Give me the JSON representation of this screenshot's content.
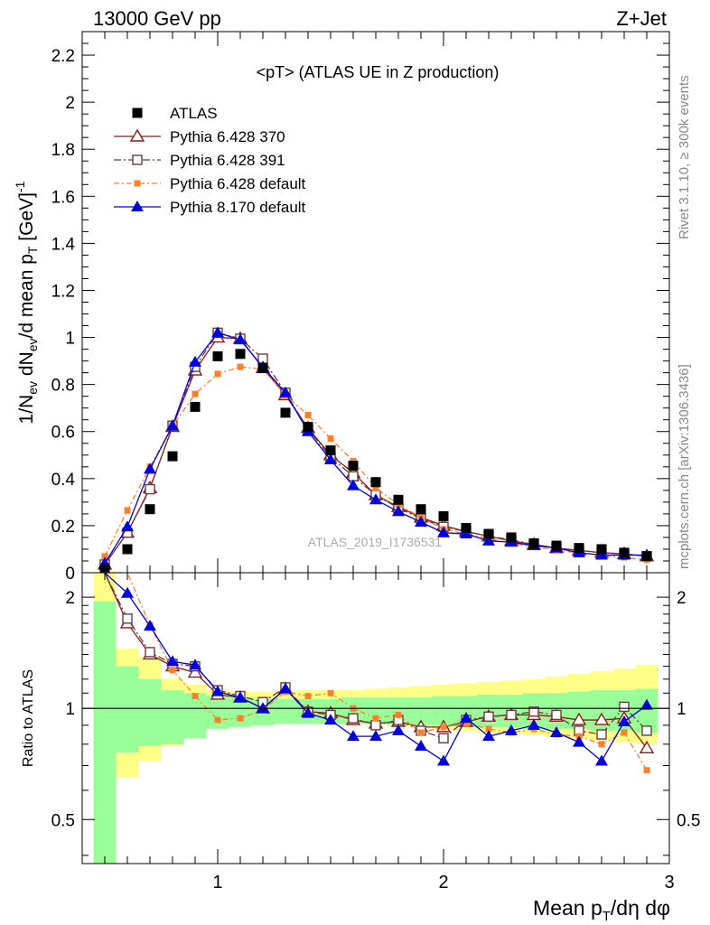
{
  "header": {
    "left_title": "13000 GeV pp",
    "right_title": "Z+Jet",
    "rivet_label": "Rivet 3.1.10, ≥ 300k events",
    "mcplots_label": "mcplots.cern.ch [arXiv:1306.3436]",
    "watermark": "ATLAS_2019_I1736531"
  },
  "chart_data": {
    "type": "scatter",
    "title": "<pT> (ATLAS UE in Z production)",
    "xlabel": "Mean p_T/dη dφ",
    "ylabel_main": "1/N_ev dN_ev/d mean p_T [GeV]^-1",
    "ylabel_ratio": "Ratio to ATLAS",
    "xlim": [
      0.4,
      3.0
    ],
    "ylim_main": [
      0,
      2.3
    ],
    "ylim_ratio": [
      0.38,
      2.33
    ],
    "ratio_scale": "log",
    "x_ticks": [
      "1",
      "2",
      "3"
    ],
    "y_ticks_main": [
      "0",
      "0.2",
      "0.4",
      "0.6",
      "0.8",
      "1",
      "1.2",
      "1.4",
      "1.6",
      "1.8",
      "2",
      "2.2"
    ],
    "y_ticks_ratio": [
      "0.5",
      "1",
      "2"
    ],
    "legend_position": "top-left",
    "x": [
      0.5,
      0.6,
      0.7,
      0.8,
      0.9,
      1.0,
      1.1,
      1.2,
      1.3,
      1.4,
      1.5,
      1.6,
      1.7,
      1.8,
      1.9,
      2.0,
      2.1,
      2.2,
      2.3,
      2.4,
      2.5,
      2.6,
      2.7,
      2.8,
      2.9
    ],
    "series": [
      {
        "name": "ATLAS",
        "color": "#000000",
        "marker": "square-filled",
        "values": [
          0.015,
          0.1,
          0.27,
          0.495,
          0.705,
          0.92,
          0.93,
          0.87,
          0.68,
          0.62,
          0.52,
          0.455,
          0.385,
          0.31,
          0.27,
          0.24,
          0.19,
          0.165,
          0.15,
          0.125,
          0.115,
          0.105,
          0.1,
          0.085,
          0.07
        ],
        "ratio": [
          1,
          1,
          1,
          1,
          1,
          1,
          1,
          1,
          1,
          1,
          1,
          1,
          1,
          1,
          1,
          1,
          1,
          1,
          1,
          1,
          1,
          1,
          1,
          1,
          1
        ]
      },
      {
        "name": "Pythia 6.428 370",
        "color": "#8b1a1a",
        "marker": "triangle-open",
        "values": [
          0.035,
          0.17,
          0.36,
          0.62,
          0.86,
          1.0,
          0.995,
          0.87,
          0.755,
          0.615,
          0.5,
          0.425,
          0.33,
          0.28,
          0.235,
          0.2,
          0.175,
          0.155,
          0.135,
          0.12,
          0.105,
          0.095,
          0.085,
          0.08,
          0.07
        ],
        "ratio": [
          2.33,
          1.7,
          1.4,
          1.3,
          1.25,
          1.09,
          1.07,
          1.0,
          1.13,
          0.98,
          0.97,
          0.93,
          0.91,
          0.92,
          0.89,
          0.89,
          0.92,
          0.95,
          0.96,
          0.96,
          0.95,
          0.93,
          0.93,
          0.94,
          0.78
        ]
      },
      {
        "name": "Pythia 6.428 391",
        "color": "#6b3b3b",
        "marker": "square-open",
        "values": [
          0.035,
          0.17,
          0.355,
          0.625,
          0.875,
          1.02,
          0.995,
          0.91,
          0.765,
          0.61,
          0.49,
          0.41,
          0.33,
          0.275,
          0.23,
          0.195,
          0.175,
          0.155,
          0.14,
          0.12,
          0.105,
          0.095,
          0.085,
          0.08,
          0.07
        ],
        "ratio": [
          2.33,
          1.75,
          1.42,
          1.32,
          1.3,
          1.12,
          1.08,
          1.04,
          1.14,
          0.98,
          0.96,
          0.94,
          0.9,
          0.93,
          0.87,
          0.83,
          0.93,
          0.95,
          0.96,
          0.98,
          0.96,
          0.87,
          0.85,
          1.01,
          0.87
        ]
      },
      {
        "name": "Pythia 6.428 default",
        "color": "#ff7f2a",
        "marker": "square-small",
        "values": [
          0.07,
          0.265,
          0.45,
          0.625,
          0.76,
          0.845,
          0.875,
          0.865,
          0.755,
          0.67,
          0.57,
          0.475,
          0.36,
          0.29,
          0.235,
          0.185,
          0.165,
          0.145,
          0.125,
          0.11,
          0.095,
          0.085,
          0.075,
          0.065,
          0.055
        ],
        "ratio": [
          2.33,
          2.33,
          1.68,
          1.27,
          1.08,
          0.93,
          0.94,
          0.99,
          1.11,
          1.08,
          1.1,
          1.0,
          0.94,
          0.96,
          0.86,
          0.89,
          0.91,
          0.88,
          0.86,
          0.88,
          0.85,
          0.84,
          0.8,
          0.86,
          0.68
        ]
      },
      {
        "name": "Pythia 8.170 default",
        "color": "#0000dd",
        "marker": "triangle-filled",
        "values": [
          0.04,
          0.195,
          0.44,
          0.625,
          0.895,
          1.02,
          0.99,
          0.875,
          0.765,
          0.6,
          0.48,
          0.37,
          0.31,
          0.26,
          0.215,
          0.17,
          0.165,
          0.135,
          0.13,
          0.115,
          0.105,
          0.085,
          0.075,
          0.075,
          0.075
        ],
        "ratio": [
          2.33,
          2.05,
          1.67,
          1.34,
          1.31,
          1.11,
          1.07,
          1.0,
          1.13,
          0.97,
          0.93,
          0.84,
          0.84,
          0.87,
          0.79,
          0.72,
          0.94,
          0.84,
          0.87,
          0.9,
          0.86,
          0.81,
          0.72,
          0.92,
          1.02
        ]
      }
    ],
    "ratio_error_band": {
      "green_lower": [
        0.38,
        0.76,
        0.79,
        0.8,
        0.83,
        0.88,
        0.89,
        0.9,
        0.91,
        0.91,
        0.91,
        0.91,
        0.91,
        0.9,
        0.9,
        0.9,
        0.89,
        0.89,
        0.89,
        0.88,
        0.88,
        0.88,
        0.87,
        0.87,
        0.86
      ],
      "green_upper": [
        1.95,
        1.3,
        1.2,
        1.12,
        1.1,
        1.08,
        1.07,
        1.06,
        1.06,
        1.06,
        1.06,
        1.07,
        1.07,
        1.07,
        1.07,
        1.08,
        1.08,
        1.09,
        1.09,
        1.1,
        1.1,
        1.11,
        1.12,
        1.12,
        1.13
      ],
      "yellow_lower": [
        0.38,
        0.65,
        0.72,
        0.79,
        0.85,
        0.9,
        0.9,
        0.91,
        0.92,
        0.92,
        0.92,
        0.91,
        0.91,
        0.9,
        0.89,
        0.88,
        0.87,
        0.86,
        0.86,
        0.85,
        0.84,
        0.83,
        0.82,
        0.81,
        0.8
      ],
      "yellow_upper": [
        2.33,
        1.45,
        1.38,
        1.2,
        1.16,
        1.12,
        1.11,
        1.11,
        1.11,
        1.12,
        1.12,
        1.12,
        1.13,
        1.14,
        1.15,
        1.16,
        1.17,
        1.18,
        1.19,
        1.2,
        1.22,
        1.24,
        1.26,
        1.28,
        1.31
      ]
    }
  }
}
